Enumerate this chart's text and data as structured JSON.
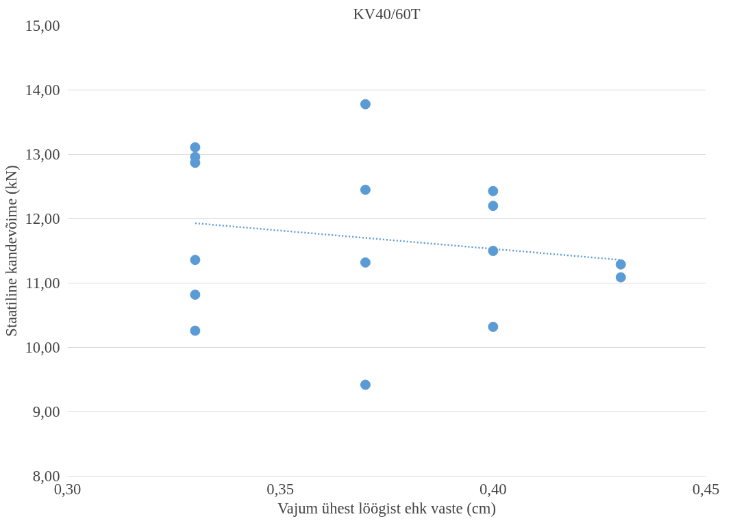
{
  "chart_data": {
    "type": "scatter",
    "title": "KV40/60T",
    "xlabel": "Vajum ühest löögist ehk vaste (cm)",
    "ylabel": "Staatiline kandevõime (kN)",
    "xlim": [
      0.3,
      0.45
    ],
    "xticks": [
      {
        "value": 0.3,
        "label": "0,30"
      },
      {
        "value": 0.35,
        "label": "0,35"
      },
      {
        "value": 0.4,
        "label": "0,40"
      },
      {
        "value": 0.45,
        "label": "0,45"
      }
    ],
    "ylim": [
      8,
      15
    ],
    "yticks": [
      {
        "value": 8,
        "label": "8,00"
      },
      {
        "value": 9,
        "label": "9,00"
      },
      {
        "value": 10,
        "label": "10,00"
      },
      {
        "value": 11,
        "label": "11,00"
      },
      {
        "value": 12,
        "label": "12,00"
      },
      {
        "value": 13,
        "label": "13,00"
      },
      {
        "value": 14,
        "label": "14,00"
      },
      {
        "value": 15,
        "label": "15,00"
      }
    ],
    "grid": "y",
    "series": [
      {
        "color": "#5b9bd5",
        "marker": "circle",
        "x": [
          0.33,
          0.33,
          0.33,
          0.33,
          0.33,
          0.33,
          0.37,
          0.37,
          0.37,
          0.37,
          0.4,
          0.4,
          0.4,
          0.4,
          0.43,
          0.43
        ],
        "values": [
          13.11,
          12.96,
          12.87,
          11.36,
          10.82,
          10.26,
          13.78,
          12.45,
          11.32,
          9.42,
          12.43,
          12.2,
          11.5,
          10.32,
          11.29,
          11.09
        ]
      },
      {
        "type": "line",
        "color": "#5b9bd5",
        "line_style": "dotted",
        "x": [
          0.33,
          0.43
        ],
        "values": [
          11.93,
          11.36
        ]
      }
    ]
  }
}
